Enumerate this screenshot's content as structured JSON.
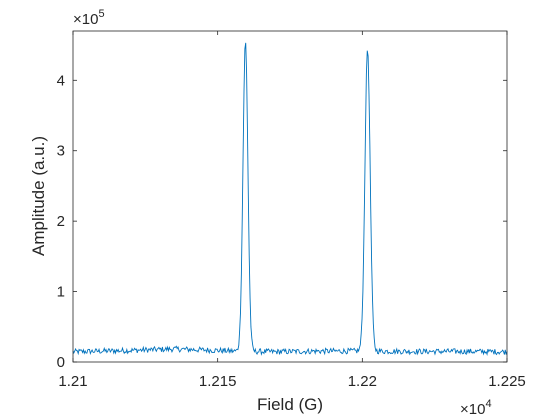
{
  "chart_data": {
    "type": "line",
    "xlabel": "Field (G)",
    "ylabel": "Amplitude (a.u.)",
    "xlim": [
      12100,
      12250
    ],
    "ylim": [
      0,
      470000
    ],
    "x_ticks": [
      12100,
      12150,
      12200,
      12250
    ],
    "x_tick_labels": [
      "1.21",
      "1.215",
      "1.22",
      "1.225"
    ],
    "y_ticks": [
      0,
      100000,
      200000,
      300000,
      400000
    ],
    "y_tick_labels": [
      "0",
      "1",
      "2",
      "3",
      "4"
    ],
    "x_exponent": {
      "base": "×10",
      "power": "4"
    },
    "y_exponent": {
      "base": "×10",
      "power": "5"
    },
    "grid": false,
    "line_color": "#0072BD",
    "series": [
      {
        "baseline": [
          [
            12100,
            14500
          ],
          [
            12120,
            16500
          ],
          [
            12135,
            18500
          ],
          [
            12150,
            16500
          ],
          [
            12155,
            15500
          ],
          [
            12170,
            14500
          ],
          [
            12185,
            15500
          ],
          [
            12200,
            15500
          ],
          [
            12220,
            15000
          ],
          [
            12235,
            15000
          ],
          [
            12250,
            14500
          ]
        ],
        "noise_amplitude": 4000,
        "peaks": [
          {
            "center": 12159.6,
            "height": 440000,
            "sigma": 0.85
          },
          {
            "center": 12201.8,
            "height": 430000,
            "sigma": 0.9
          }
        ],
        "x_step": 0.3
      }
    ]
  }
}
